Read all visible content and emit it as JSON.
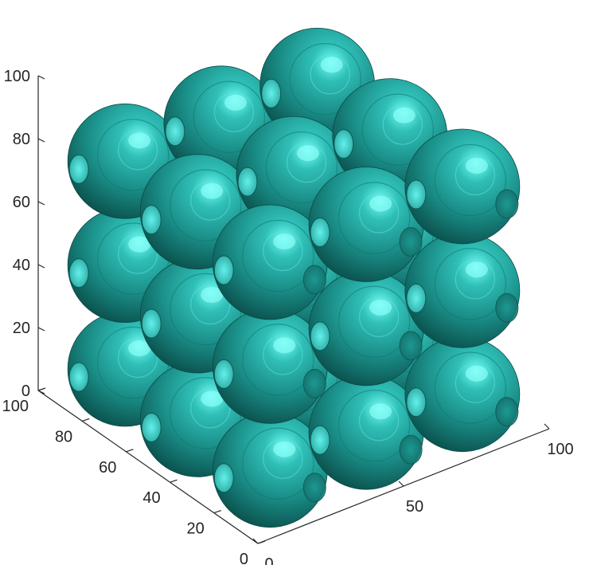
{
  "chart_data": {
    "type": "scatter",
    "subtype": "3d-isosurface",
    "title": "",
    "xlabel": "",
    "ylabel": "",
    "zlabel": "",
    "xlim": [
      0,
      100
    ],
    "ylim": [
      0,
      100
    ],
    "zlim": [
      0,
      100
    ],
    "x_ticks": [
      "0",
      "50",
      "100"
    ],
    "y_ticks": [
      "0",
      "20",
      "40",
      "60",
      "80",
      "100"
    ],
    "z_ticks": [
      "0",
      "20",
      "40",
      "60",
      "80",
      "100"
    ],
    "grid": false,
    "legend": "none",
    "surface_color": "#1a8c86",
    "highlight_color": "#66f2ec",
    "shadow_color": "#0a4f4b",
    "lattice": {
      "description": "3 x 3 x 3 cubic lattice of sphere-like isosurfaces",
      "centers": [
        17,
        50,
        83
      ],
      "radius": 17
    }
  }
}
